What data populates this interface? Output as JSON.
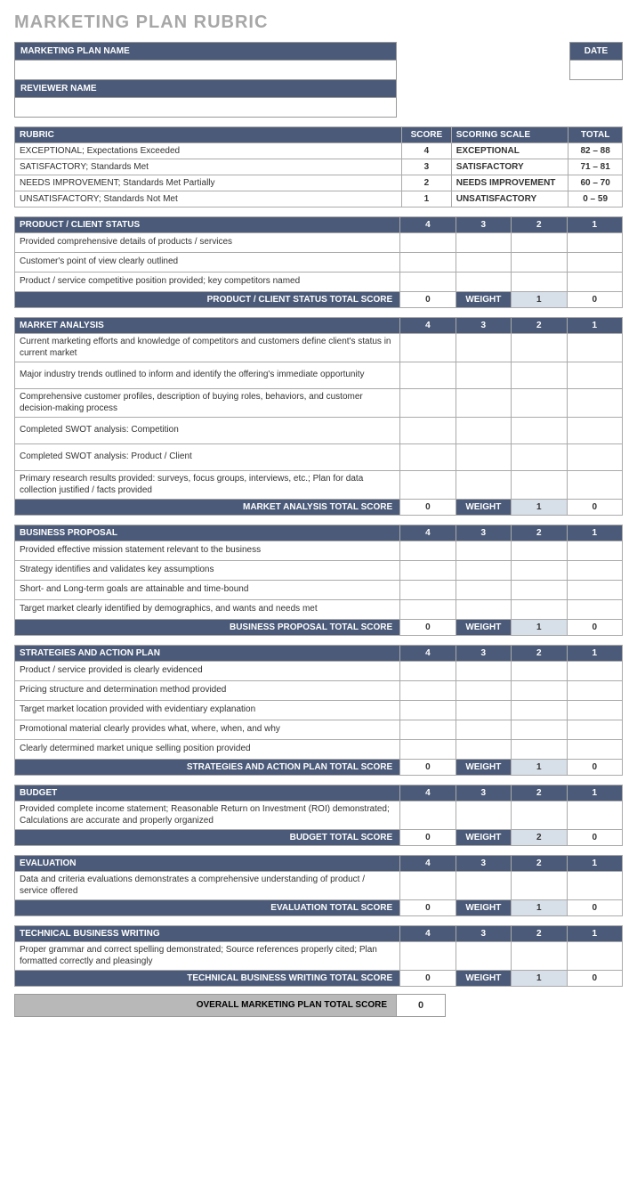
{
  "title": "MARKETING PLAN RUBRIC",
  "header": {
    "plan_name_label": "MARKETING PLAN NAME",
    "date_label": "DATE",
    "reviewer_label": "REVIEWER NAME"
  },
  "rubric": {
    "col_rubric": "RUBRIC",
    "col_score": "SCORE",
    "col_scale": "SCORING SCALE",
    "col_total": "TOTAL",
    "rows": [
      {
        "desc": "EXCEPTIONAL; Expectations Exceeded",
        "score": "4",
        "scale": "EXCEPTIONAL",
        "total": "82 – 88"
      },
      {
        "desc": "SATISFACTORY; Standards Met",
        "score": "3",
        "scale": "SATISFACTORY",
        "total": "71 – 81"
      },
      {
        "desc": "NEEDS IMPROVEMENT; Standards Met Partially",
        "score": "2",
        "scale": "NEEDS IMPROVEMENT",
        "total": "60 – 70"
      },
      {
        "desc": "UNSATISFACTORY; Standards Not Met",
        "score": "1",
        "scale": "UNSATISFACTORY",
        "total": "0 – 59"
      }
    ]
  },
  "score_headers": [
    "4",
    "3",
    "2",
    "1"
  ],
  "weight_label": "WEIGHT",
  "sections": [
    {
      "title": "PRODUCT / CLIENT STATUS",
      "total_label": "PRODUCT / CLIENT STATUS TOTAL SCORE",
      "total": "0",
      "weight": "1",
      "weighted": "0",
      "criteria": [
        "Provided comprehensive details of products / services",
        "Customer's point of view clearly outlined",
        "Product / service competitive position provided; key competitors named"
      ]
    },
    {
      "title": "MARKET ANALYSIS",
      "total_label": "MARKET ANALYSIS TOTAL SCORE",
      "total": "0",
      "weight": "1",
      "weighted": "0",
      "tall": true,
      "criteria": [
        "Current marketing efforts and knowledge of competitors and customers define client's status in current market",
        "Major industry trends outlined to inform and identify the offering's immediate opportunity",
        "Comprehensive customer profiles, description of buying roles, behaviors, and customer decision-making process",
        "Completed SWOT analysis: Competition",
        "Completed SWOT analysis: Product / Client",
        "Primary research results provided: surveys, focus groups, interviews, etc.; Plan for data collection justified / facts provided"
      ]
    },
    {
      "title": "BUSINESS PROPOSAL",
      "total_label": "BUSINESS PROPOSAL TOTAL SCORE",
      "total": "0",
      "weight": "1",
      "weighted": "0",
      "criteria": [
        "Provided effective mission statement relevant to the business",
        "Strategy identifies and validates key assumptions",
        "Short- and Long-term goals are attainable and time-bound",
        "Target market clearly identified by demographics, and wants and needs met"
      ]
    },
    {
      "title": "STRATEGIES AND ACTION PLAN",
      "total_label": "STRATEGIES AND ACTION PLAN TOTAL SCORE",
      "total": "0",
      "weight": "1",
      "weighted": "0",
      "criteria": [
        "Product / service provided is clearly evidenced",
        "Pricing structure and determination method provided",
        "Target market location provided with evidentiary explanation",
        "Promotional material clearly provides what, where, when, and why",
        "Clearly determined market unique selling position provided"
      ]
    },
    {
      "title": "BUDGET",
      "total_label": "BUDGET TOTAL SCORE",
      "total": "0",
      "weight": "2",
      "weighted": "0",
      "tall": true,
      "criteria": [
        "Provided complete income statement; Reasonable Return on Investment (ROI) demonstrated; Calculations are accurate and properly organized"
      ]
    },
    {
      "title": "EVALUATION",
      "total_label": "EVALUATION TOTAL SCORE",
      "total": "0",
      "weight": "1",
      "weighted": "0",
      "tall": true,
      "criteria": [
        "Data and criteria evaluations demonstrates a comprehensive understanding of product / service offered"
      ]
    },
    {
      "title": "TECHNICAL BUSINESS WRITING",
      "total_label": "TECHNICAL BUSINESS WRITING TOTAL SCORE",
      "total": "0",
      "weight": "1",
      "weighted": "0",
      "tall": true,
      "criteria": [
        "Proper grammar and correct spelling demonstrated; Source references properly cited; Plan formatted correctly and pleasingly"
      ]
    }
  ],
  "overall": {
    "label": "OVERALL MARKETING PLAN TOTAL SCORE",
    "value": "0"
  },
  "colors": {
    "header_bg": "#4a5a78",
    "weight_bg": "#d7dfe8",
    "overall_bg": "#b8b8b8",
    "title_color": "#a7a7a7"
  }
}
